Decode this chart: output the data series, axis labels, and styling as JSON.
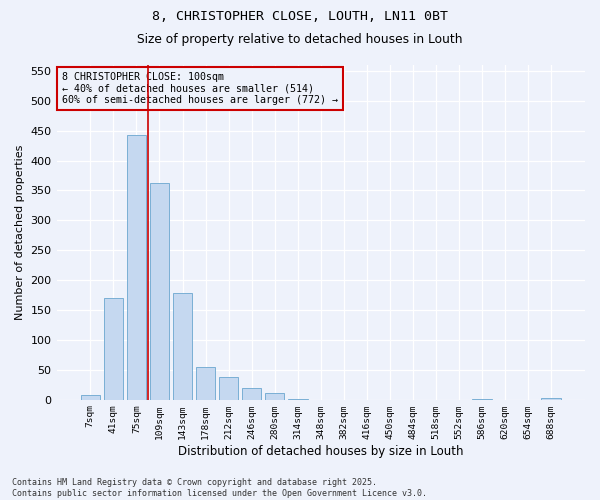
{
  "title1": "8, CHRISTOPHER CLOSE, LOUTH, LN11 0BT",
  "title2": "Size of property relative to detached houses in Louth",
  "xlabel": "Distribution of detached houses by size in Louth",
  "ylabel": "Number of detached properties",
  "categories": [
    "7sqm",
    "41sqm",
    "75sqm",
    "109sqm",
    "143sqm",
    "178sqm",
    "212sqm",
    "246sqm",
    "280sqm",
    "314sqm",
    "348sqm",
    "382sqm",
    "416sqm",
    "450sqm",
    "484sqm",
    "518sqm",
    "552sqm",
    "586sqm",
    "620sqm",
    "654sqm",
    "688sqm"
  ],
  "values": [
    8,
    170,
    443,
    363,
    178,
    55,
    38,
    20,
    11,
    1,
    0,
    0,
    0,
    0,
    0,
    0,
    0,
    1,
    0,
    0,
    3
  ],
  "bar_color": "#c5d8f0",
  "bar_edgecolor": "#7aafd4",
  "vline_color": "#cc0000",
  "vline_x": 2.5,
  "annotation_text": "8 CHRISTOPHER CLOSE: 100sqm\n← 40% of detached houses are smaller (514)\n60% of semi-detached houses are larger (772) →",
  "annotation_box_color": "#cc0000",
  "ylim": [
    0,
    560
  ],
  "yticks": [
    0,
    50,
    100,
    150,
    200,
    250,
    300,
    350,
    400,
    450,
    500,
    550
  ],
  "footnote": "Contains HM Land Registry data © Crown copyright and database right 2025.\nContains public sector information licensed under the Open Government Licence v3.0.",
  "bg_color": "#eef2fb",
  "grid_color": "#ffffff"
}
